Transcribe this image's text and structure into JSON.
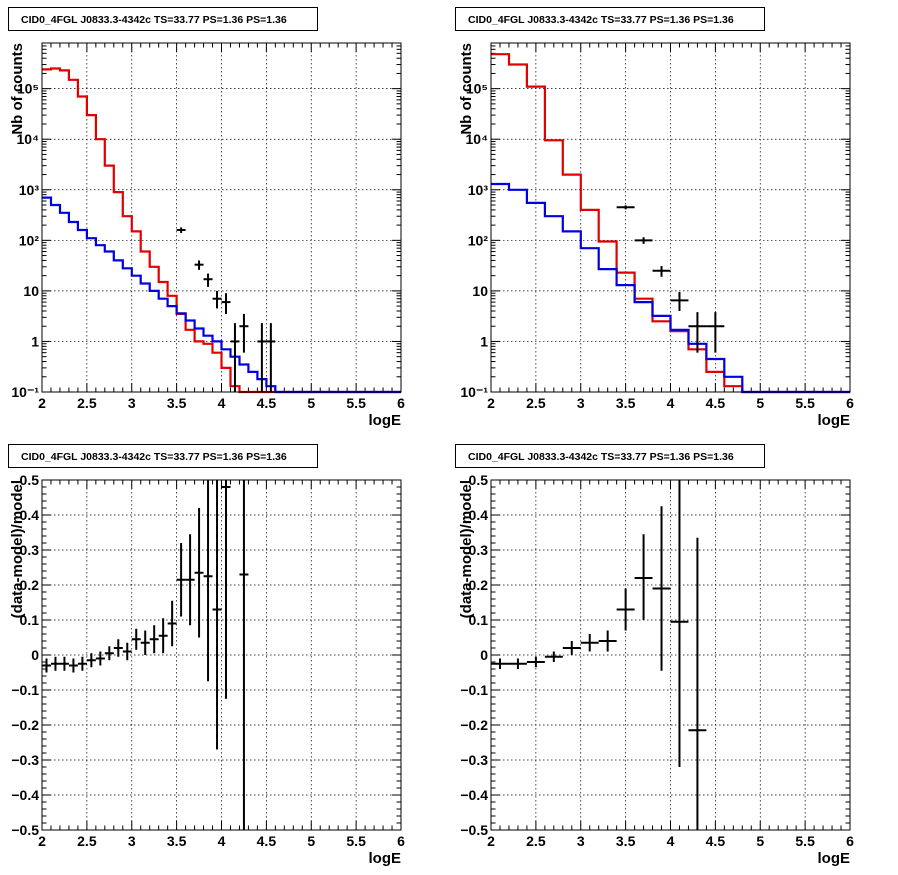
{
  "pad_title": "CID0_4FGL J0833.3-4342c TS=33.77 PS=1.36 PS=1.36",
  "chart_data": [
    {
      "type": "line",
      "title": "CID0_4FGL J0833.3-4342c TS=33.77 PS=1.36 PS=1.36",
      "xlabel": "logE",
      "ylabel": "Nb of counts",
      "xlim": [
        2,
        6
      ],
      "ylim": [
        0.1,
        800000
      ],
      "log_y": true,
      "grid": true,
      "x_ticks": [
        "2",
        "2.5",
        "3",
        "3.5",
        "4",
        "4.5",
        "5",
        "5.5",
        "6"
      ],
      "y_ticks": [
        {
          "value": 0.1,
          "label": "10⁻¹"
        },
        {
          "value": 1,
          "label": "1"
        },
        {
          "value": 10,
          "label": "10"
        },
        {
          "value": 100,
          "label": "10²"
        },
        {
          "value": 1000,
          "label": "10³"
        },
        {
          "value": 10000,
          "label": "10⁴"
        },
        {
          "value": 100000,
          "label": "10⁵"
        }
      ],
      "bin_edges": [
        2.0,
        2.1,
        2.2,
        2.3,
        2.4,
        2.5,
        2.6,
        2.7,
        2.8,
        2.9,
        3.0,
        3.1,
        3.2,
        3.3,
        3.4,
        3.5,
        3.6,
        3.7,
        3.8,
        3.9,
        4.0,
        4.1,
        4.2,
        4.3,
        4.4,
        4.5,
        4.6,
        4.7,
        4.8,
        4.9,
        5.0,
        5.1,
        5.2,
        5.3,
        5.4,
        5.5,
        5.6,
        5.7,
        5.8,
        5.9,
        6.0
      ],
      "series": [
        {
          "color": "#e00000",
          "kind": "step",
          "values": [
            240000,
            250000,
            230000,
            150000,
            70000,
            30000,
            10000,
            3000,
            900,
            300,
            150,
            60,
            30,
            15,
            8,
            3.5,
            1.7,
            1.0,
            0.9,
            0.6,
            0.3,
            0.13,
            0.1,
            0.1,
            0.1,
            0.1,
            0.1,
            0.1,
            0.1,
            0.1,
            0.1,
            0.1,
            0.1,
            0.1,
            0.1,
            0.1,
            0.1,
            0.1,
            0.1,
            0.1
          ]
        },
        {
          "color": "#0000e0",
          "kind": "step",
          "values": [
            700,
            500,
            350,
            230,
            160,
            110,
            80,
            60,
            40,
            28,
            20,
            14,
            10,
            7,
            5,
            3.6,
            2.6,
            1.8,
            1.3,
            1.0,
            0.7,
            0.5,
            0.35,
            0.25,
            0.18,
            0.13,
            0.1,
            0.1,
            0.1,
            0.1,
            0.1,
            0.1,
            0.1,
            0.1,
            0.1,
            0.1,
            0.1,
            0.1,
            0.1,
            0.1
          ]
        },
        {
          "color": "#000000",
          "kind": "points",
          "points": [
            {
              "x": 3.55,
              "y": 160,
              "ylo": 140,
              "yhi": 180
            },
            {
              "x": 3.75,
              "y": 33,
              "ylo": 26,
              "yhi": 40
            },
            {
              "x": 3.85,
              "y": 17,
              "ylo": 12,
              "yhi": 22
            },
            {
              "x": 3.95,
              "y": 7,
              "ylo": 4.5,
              "yhi": 10
            },
            {
              "x": 4.05,
              "y": 6,
              "ylo": 3.5,
              "yhi": 9
            },
            {
              "x": 4.15,
              "y": 1,
              "ylo": 0.1,
              "yhi": 2.3
            },
            {
              "x": 4.25,
              "y": 2,
              "ylo": 0.6,
              "yhi": 3.5
            },
            {
              "x": 4.45,
              "y": 1,
              "ylo": 0.1,
              "yhi": 2.3
            },
            {
              "x": 4.55,
              "y": 1,
              "ylo": 0.1,
              "yhi": 2.3
            }
          ]
        }
      ]
    },
    {
      "type": "line",
      "title": "CID0_4FGL J0833.3-4342c TS=33.77 PS=1.36 PS=1.36",
      "xlabel": "logE",
      "ylabel": "Nb of counts",
      "xlim": [
        2,
        6
      ],
      "ylim": [
        0.1,
        800000
      ],
      "log_y": true,
      "grid": true,
      "x_ticks": [
        "2",
        "2.5",
        "3",
        "3.5",
        "4",
        "4.5",
        "5",
        "5.5",
        "6"
      ],
      "y_ticks": [
        {
          "value": 0.1,
          "label": "10⁻¹"
        },
        {
          "value": 1,
          "label": "1"
        },
        {
          "value": 10,
          "label": "10"
        },
        {
          "value": 100,
          "label": "10²"
        },
        {
          "value": 1000,
          "label": "10³"
        },
        {
          "value": 10000,
          "label": "10⁴"
        },
        {
          "value": 100000,
          "label": "10⁵"
        }
      ],
      "bin_edges": [
        2.0,
        2.2,
        2.4,
        2.6,
        2.8,
        3.0,
        3.2,
        3.4,
        3.6,
        3.8,
        4.0,
        4.2,
        4.4,
        4.6,
        4.8,
        5.0,
        5.2,
        5.4,
        5.6,
        5.8,
        6.0
      ],
      "series": [
        {
          "color": "#e00000",
          "kind": "step",
          "values": [
            480000,
            300000,
            110000,
            9500,
            2000,
            400,
            95,
            23,
            7,
            2.5,
            1.6,
            0.7,
            0.25,
            0.13,
            0.1,
            0.1,
            0.1,
            0.1,
            0.1,
            0.1
          ]
        },
        {
          "color": "#0000e0",
          "kind": "step",
          "values": [
            1300,
            1000,
            550,
            300,
            150,
            70,
            27,
            13,
            6,
            3.2,
            1.7,
            0.9,
            0.45,
            0.2,
            0.1,
            0.1,
            0.1,
            0.1,
            0.1,
            0.1
          ]
        },
        {
          "color": "#000000",
          "kind": "points",
          "points": [
            {
              "x": 3.5,
              "y": 450,
              "ylo": 410,
              "yhi": 490
            },
            {
              "x": 3.7,
              "y": 100,
              "ylo": 85,
              "yhi": 115
            },
            {
              "x": 3.9,
              "y": 25,
              "ylo": 19,
              "yhi": 31
            },
            {
              "x": 4.1,
              "y": 6.5,
              "ylo": 4,
              "yhi": 9.5
            },
            {
              "x": 4.3,
              "y": 2,
              "ylo": 0.6,
              "yhi": 3.8
            },
            {
              "x": 4.5,
              "y": 2,
              "ylo": 0.6,
              "yhi": 3.8
            }
          ]
        }
      ]
    },
    {
      "type": "scatter",
      "title": "CID0_4FGL J0833.3-4342c TS=33.77 PS=1.36 PS=1.36",
      "xlabel": "logE",
      "ylabel": "(data-model)/model",
      "xlim": [
        2,
        6
      ],
      "ylim": [
        -0.5,
        0.5
      ],
      "grid": true,
      "x_ticks": [
        "2",
        "2.5",
        "3",
        "3.5",
        "4",
        "4.5",
        "5",
        "5.5",
        "6"
      ],
      "y_ticks": [
        {
          "value": -0.5,
          "label": "−0.5"
        },
        {
          "value": -0.4,
          "label": "−0.4"
        },
        {
          "value": -0.3,
          "label": "−0.3"
        },
        {
          "value": -0.2,
          "label": "−0.2"
        },
        {
          "value": -0.1,
          "label": "−0.1"
        },
        {
          "value": 0,
          "label": "0"
        },
        {
          "value": 0.1,
          "label": "0.1"
        },
        {
          "value": 0.2,
          "label": "0.2"
        },
        {
          "value": 0.3,
          "label": "0.3"
        },
        {
          "value": 0.4,
          "label": "0.4"
        },
        {
          "value": 0.5,
          "label": "0.5"
        }
      ],
      "x_half_width": 0.05,
      "series": [
        {
          "color": "#000000",
          "points": [
            {
              "x": 2.05,
              "y": -0.03,
              "ylo": -0.05,
              "yhi": -0.01
            },
            {
              "x": 2.15,
              "y": -0.025,
              "ylo": -0.045,
              "yhi": -0.005
            },
            {
              "x": 2.25,
              "y": -0.025,
              "ylo": -0.045,
              "yhi": -0.005
            },
            {
              "x": 2.35,
              "y": -0.03,
              "ylo": -0.05,
              "yhi": -0.01
            },
            {
              "x": 2.45,
              "y": -0.025,
              "ylo": -0.045,
              "yhi": -0.005
            },
            {
              "x": 2.55,
              "y": -0.015,
              "ylo": -0.035,
              "yhi": 0.005
            },
            {
              "x": 2.65,
              "y": -0.01,
              "ylo": -0.03,
              "yhi": 0.01
            },
            {
              "x": 2.75,
              "y": 0.005,
              "ylo": -0.015,
              "yhi": 0.025
            },
            {
              "x": 2.85,
              "y": 0.02,
              "ylo": -0.005,
              "yhi": 0.045
            },
            {
              "x": 2.95,
              "y": 0.01,
              "ylo": -0.015,
              "yhi": 0.035
            },
            {
              "x": 3.05,
              "y": 0.045,
              "ylo": 0.015,
              "yhi": 0.075
            },
            {
              "x": 3.15,
              "y": 0.035,
              "ylo": 0.0,
              "yhi": 0.07
            },
            {
              "x": 3.25,
              "y": 0.045,
              "ylo": 0.005,
              "yhi": 0.085
            },
            {
              "x": 3.35,
              "y": 0.055,
              "ylo": 0.005,
              "yhi": 0.105
            },
            {
              "x": 3.45,
              "y": 0.09,
              "ylo": 0.025,
              "yhi": 0.155
            },
            {
              "x": 3.55,
              "y": 0.215,
              "ylo": 0.11,
              "yhi": 0.32
            },
            {
              "x": 3.65,
              "y": 0.215,
              "ylo": 0.085,
              "yhi": 0.345
            },
            {
              "x": 3.75,
              "y": 0.235,
              "ylo": 0.05,
              "yhi": 0.42
            },
            {
              "x": 3.85,
              "y": 0.225,
              "ylo": -0.075,
              "yhi": 0.5
            },
            {
              "x": 3.95,
              "y": 0.13,
              "ylo": -0.27,
              "yhi": 0.5
            },
            {
              "x": 4.05,
              "y": 0.48,
              "ylo": -0.125,
              "yhi": 0.5
            },
            {
              "x": 4.25,
              "y": 0.23,
              "ylo": -0.5,
              "yhi": 0.5
            }
          ]
        }
      ]
    },
    {
      "type": "scatter",
      "title": "CID0_4FGL J0833.3-4342c TS=33.77 PS=1.36 PS=1.36",
      "xlabel": "logE",
      "ylabel": "(data-model)/model",
      "xlim": [
        2,
        6
      ],
      "ylim": [
        -0.5,
        0.5
      ],
      "grid": true,
      "x_ticks": [
        "2",
        "2.5",
        "3",
        "3.5",
        "4",
        "4.5",
        "5",
        "5.5",
        "6"
      ],
      "y_ticks": [
        {
          "value": -0.5,
          "label": "−0.5"
        },
        {
          "value": -0.4,
          "label": "−0.4"
        },
        {
          "value": -0.3,
          "label": "−0.3"
        },
        {
          "value": -0.2,
          "label": "−0.2"
        },
        {
          "value": -0.1,
          "label": "−0.1"
        },
        {
          "value": 0,
          "label": "0"
        },
        {
          "value": 0.1,
          "label": "0.1"
        },
        {
          "value": 0.2,
          "label": "0.2"
        },
        {
          "value": 0.3,
          "label": "0.3"
        },
        {
          "value": 0.4,
          "label": "0.4"
        },
        {
          "value": 0.5,
          "label": "0.5"
        }
      ],
      "x_half_width": 0.1,
      "series": [
        {
          "color": "#000000",
          "points": [
            {
              "x": 2.1,
              "y": -0.025,
              "ylo": -0.04,
              "yhi": -0.01
            },
            {
              "x": 2.3,
              "y": -0.025,
              "ylo": -0.04,
              "yhi": -0.01
            },
            {
              "x": 2.5,
              "y": -0.02,
              "ylo": -0.035,
              "yhi": -0.005
            },
            {
              "x": 2.7,
              "y": -0.005,
              "ylo": -0.02,
              "yhi": 0.01
            },
            {
              "x": 2.9,
              "y": 0.02,
              "ylo": 0.0,
              "yhi": 0.04
            },
            {
              "x": 3.1,
              "y": 0.035,
              "ylo": 0.01,
              "yhi": 0.06
            },
            {
              "x": 3.3,
              "y": 0.04,
              "ylo": 0.01,
              "yhi": 0.07
            },
            {
              "x": 3.5,
              "y": 0.13,
              "ylo": 0.07,
              "yhi": 0.19
            },
            {
              "x": 3.7,
              "y": 0.22,
              "ylo": 0.1,
              "yhi": 0.345
            },
            {
              "x": 3.9,
              "y": 0.19,
              "ylo": -0.045,
              "yhi": 0.425
            },
            {
              "x": 4.1,
              "y": 0.095,
              "ylo": -0.32,
              "yhi": 0.5
            },
            {
              "x": 4.3,
              "y": -0.215,
              "ylo": -0.5,
              "yhi": 0.335
            }
          ]
        }
      ]
    }
  ]
}
